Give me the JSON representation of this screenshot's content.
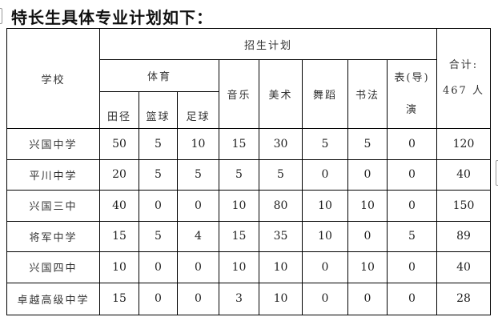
{
  "title": "特长生具体专业计划如下：",
  "header": {
    "school": "学校",
    "plan": "招生计划",
    "pe": "体育",
    "pe_sub": [
      "田径",
      "篮球",
      "足球"
    ],
    "others": [
      "音乐",
      "美术",
      "舞蹈",
      "书法"
    ],
    "perform_line1": "表(导)",
    "perform_line2": "演",
    "total_line1": "合计:",
    "total_line2": "467 人"
  },
  "rows": [
    {
      "school": "兴国中学",
      "values": [
        "50",
        "5",
        "10",
        "15",
        "30",
        "5",
        "5",
        "0",
        "120"
      ]
    },
    {
      "school": "平川中学",
      "values": [
        "20",
        "5",
        "5",
        "5",
        "5",
        "0",
        "0",
        "0",
        "40"
      ]
    },
    {
      "school": "兴国三中",
      "values": [
        "40",
        "0",
        "0",
        "10",
        "80",
        "10",
        "10",
        "0",
        "150"
      ]
    },
    {
      "school": "将军中学",
      "values": [
        "15",
        "5",
        "4",
        "15",
        "35",
        "10",
        "0",
        "5",
        "89"
      ]
    },
    {
      "school": "兴国四中",
      "values": [
        "10",
        "0",
        "0",
        "10",
        "10",
        "0",
        "10",
        "0",
        "40"
      ]
    },
    {
      "school": "卓越高级中学",
      "values": [
        "15",
        "0",
        "0",
        "3",
        "10",
        "0",
        "0",
        "0",
        "28"
      ]
    }
  ]
}
